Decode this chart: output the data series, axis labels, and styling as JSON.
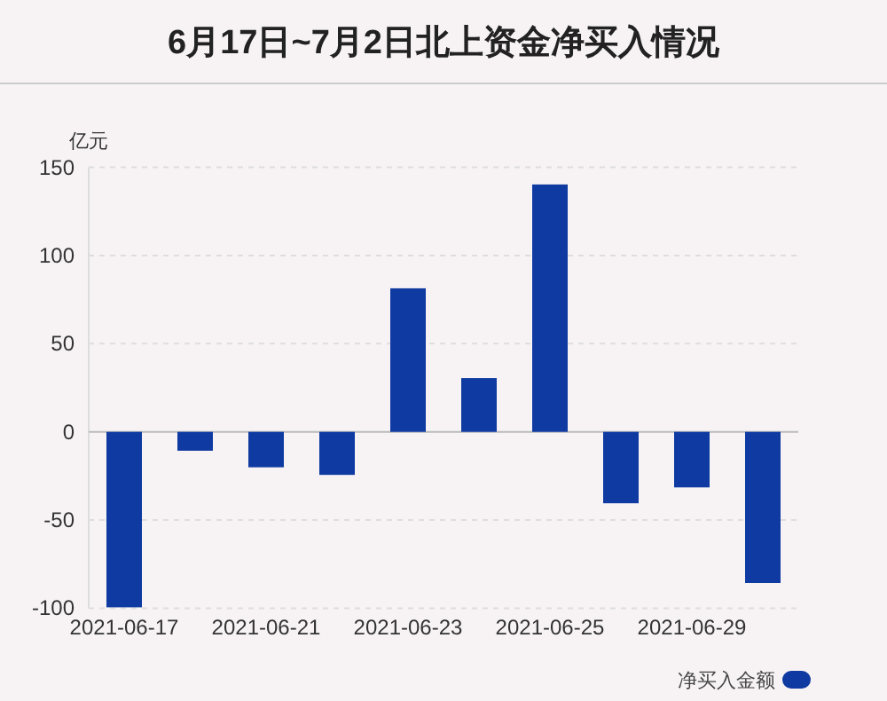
{
  "chart_data": {
    "type": "bar",
    "title": "6月17日~7月2日北上资金净买入情况",
    "ylabel": "亿元",
    "categories": [
      "2021-06-17",
      null,
      "2021-06-21",
      null,
      "2021-06-23",
      null,
      "2021-06-25",
      null,
      "2021-06-29",
      null
    ],
    "series": [
      {
        "name": "净买入金额",
        "color": "#0e3aa1",
        "values": [
          -99.5,
          -10.7,
          -20.1,
          -24.4,
          81.4,
          30.5,
          140.3,
          -40.5,
          -31.5,
          -85.7
        ]
      }
    ],
    "ylim": [
      -100,
      150
    ],
    "yticks": [
      -100,
      -50,
      0,
      50,
      100,
      150
    ],
    "grid": "y",
    "legend": "bottom right"
  }
}
